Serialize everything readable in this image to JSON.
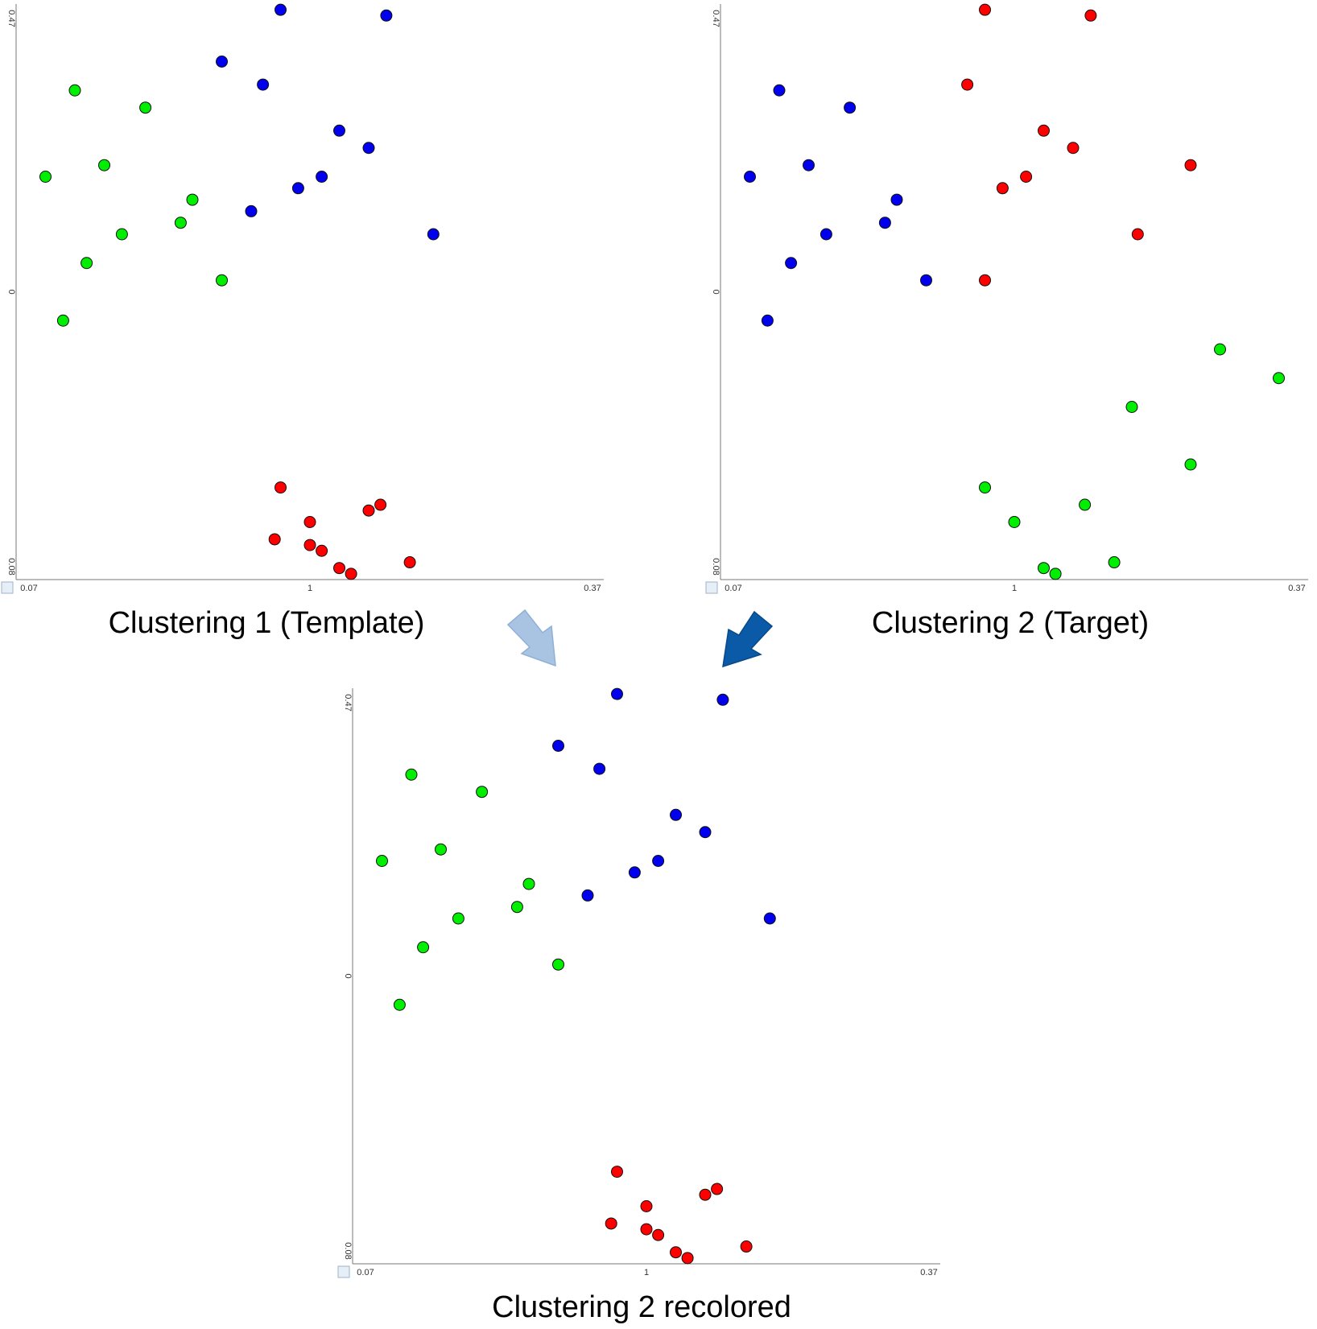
{
  "colors": {
    "red": "#ff0000",
    "green": "#00ee00",
    "blue": "#0000ee",
    "arrow_light": "#a9c4e2",
    "arrow_dark": "#0a5aa8",
    "axis": "#777777"
  },
  "chart_data": [
    {
      "type": "scatter",
      "caption": "Clustering 1 (Template)",
      "x_ticks": [
        "0.07",
        "1",
        "0.37"
      ],
      "y_ticks": [
        "0.47",
        "0",
        "0.08"
      ],
      "series": [
        {
          "color": "red",
          "points": [
            [
              0.62,
              0.13
            ],
            [
              0.67,
              0.03
            ],
            [
              0.5,
              0.1
            ],
            [
              0.5,
              0.06
            ],
            [
              0.45,
              0.16
            ],
            [
              0.44,
              0.07
            ],
            [
              0.57,
              0.01
            ],
            [
              0.52,
              0.05
            ],
            [
              0.55,
              0.02
            ],
            [
              0.6,
              0.12
            ]
          ]
        },
        {
          "color": "green",
          "points": [
            [
              0.1,
              0.85
            ],
            [
              0.22,
              0.82
            ],
            [
              0.15,
              0.72
            ],
            [
              0.3,
              0.66
            ],
            [
              0.05,
              0.7
            ],
            [
              0.18,
              0.6
            ],
            [
              0.28,
              0.62
            ],
            [
              0.12,
              0.55
            ],
            [
              0.35,
              0.52
            ],
            [
              0.08,
              0.45
            ]
          ]
        },
        {
          "color": "blue",
          "points": [
            [
              0.45,
              0.99
            ],
            [
              0.63,
              0.98
            ],
            [
              0.35,
              0.9
            ],
            [
              0.42,
              0.86
            ],
            [
              0.55,
              0.78
            ],
            [
              0.6,
              0.75
            ],
            [
              0.48,
              0.68
            ],
            [
              0.52,
              0.7
            ],
            [
              0.4,
              0.64
            ],
            [
              0.71,
              0.6
            ]
          ]
        }
      ]
    },
    {
      "type": "scatter",
      "caption": "Clustering 2 (Target)",
      "x_ticks": [
        "0.07",
        "1",
        "0.37"
      ],
      "y_ticks": [
        "0.47",
        "0",
        "0.08"
      ],
      "series": [
        {
          "color": "red",
          "points": [
            [
              0.45,
              0.99
            ],
            [
              0.63,
              0.98
            ],
            [
              0.42,
              0.86
            ],
            [
              0.55,
              0.78
            ],
            [
              0.6,
              0.75
            ],
            [
              0.48,
              0.68
            ],
            [
              0.52,
              0.7
            ],
            [
              0.71,
              0.6
            ],
            [
              0.8,
              0.72
            ],
            [
              0.45,
              0.52
            ]
          ]
        },
        {
          "color": "green",
          "points": [
            [
              0.62,
              0.13
            ],
            [
              0.67,
              0.03
            ],
            [
              0.5,
              0.1
            ],
            [
              0.45,
              0.16
            ],
            [
              0.57,
              0.01
            ],
            [
              0.55,
              0.02
            ],
            [
              0.7,
              0.3
            ],
            [
              0.85,
              0.4
            ],
            [
              0.95,
              0.35
            ],
            [
              0.8,
              0.2
            ]
          ]
        },
        {
          "color": "blue",
          "points": [
            [
              0.1,
              0.85
            ],
            [
              0.22,
              0.82
            ],
            [
              0.15,
              0.72
            ],
            [
              0.3,
              0.66
            ],
            [
              0.05,
              0.7
            ],
            [
              0.18,
              0.6
            ],
            [
              0.28,
              0.62
            ],
            [
              0.12,
              0.55
            ],
            [
              0.35,
              0.52
            ],
            [
              0.08,
              0.45
            ]
          ]
        }
      ]
    },
    {
      "type": "scatter",
      "caption": "Clustering 2 recolored",
      "x_ticks": [
        "0.07",
        "1",
        "0.37"
      ],
      "y_ticks": [
        "0.47",
        "0",
        "0.08"
      ],
      "series": [
        {
          "color": "red",
          "points": [
            [
              0.62,
              0.13
            ],
            [
              0.67,
              0.03
            ],
            [
              0.5,
              0.1
            ],
            [
              0.5,
              0.06
            ],
            [
              0.45,
              0.16
            ],
            [
              0.44,
              0.07
            ],
            [
              0.57,
              0.01
            ],
            [
              0.52,
              0.05
            ],
            [
              0.55,
              0.02
            ],
            [
              0.6,
              0.12
            ]
          ]
        },
        {
          "color": "green",
          "points": [
            [
              0.1,
              0.85
            ],
            [
              0.22,
              0.82
            ],
            [
              0.15,
              0.72
            ],
            [
              0.3,
              0.66
            ],
            [
              0.05,
              0.7
            ],
            [
              0.18,
              0.6
            ],
            [
              0.28,
              0.62
            ],
            [
              0.12,
              0.55
            ],
            [
              0.35,
              0.52
            ],
            [
              0.08,
              0.45
            ]
          ]
        },
        {
          "color": "blue",
          "points": [
            [
              0.45,
              0.99
            ],
            [
              0.63,
              0.98
            ],
            [
              0.35,
              0.9
            ],
            [
              0.42,
              0.86
            ],
            [
              0.55,
              0.78
            ],
            [
              0.6,
              0.75
            ],
            [
              0.48,
              0.68
            ],
            [
              0.52,
              0.7
            ],
            [
              0.4,
              0.64
            ],
            [
              0.71,
              0.6
            ]
          ]
        }
      ]
    }
  ]
}
